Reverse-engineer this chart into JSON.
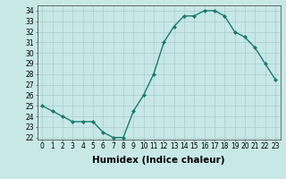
{
  "x": [
    0,
    1,
    2,
    3,
    4,
    5,
    6,
    7,
    8,
    9,
    10,
    11,
    12,
    13,
    14,
    15,
    16,
    17,
    18,
    19,
    20,
    21,
    22,
    23
  ],
  "y": [
    25.0,
    24.5,
    24.0,
    23.5,
    23.5,
    23.5,
    22.5,
    22.0,
    22.0,
    24.5,
    26.0,
    28.0,
    31.0,
    32.5,
    33.5,
    33.5,
    34.0,
    34.0,
    33.5,
    32.0,
    31.5,
    30.5,
    29.0,
    27.5
  ],
  "line_color": "#1a7a6e",
  "marker": "D",
  "marker_size": 2.0,
  "line_width": 1.0,
  "xlabel": "Humidex (Indice chaleur)",
  "xlim": [
    -0.5,
    23.5
  ],
  "ylim": [
    21.8,
    34.5
  ],
  "yticks": [
    22,
    23,
    24,
    25,
    26,
    27,
    28,
    29,
    30,
    31,
    32,
    33,
    34
  ],
  "xtick_labels": [
    "0",
    "1",
    "2",
    "3",
    "4",
    "5",
    "6",
    "7",
    "8",
    "9",
    "10",
    "11",
    "12",
    "13",
    "14",
    "15",
    "16",
    "17",
    "18",
    "19",
    "20",
    "21",
    "22",
    "23"
  ],
  "background_color": "#c8e8e8",
  "grid_color": "#aacccc",
  "tick_fontsize": 5.5,
  "label_fontsize": 7.5,
  "spine_color": "#555555"
}
